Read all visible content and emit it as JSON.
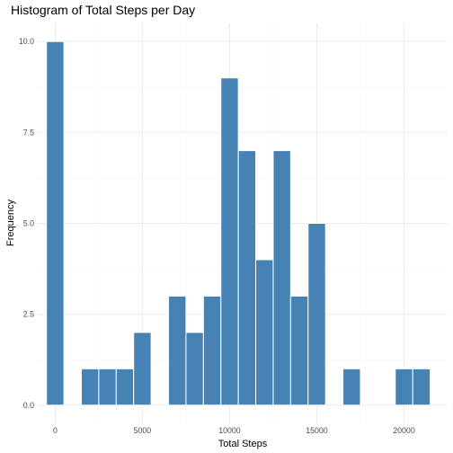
{
  "chart_data": {
    "type": "bar",
    "title": "Histogram of Total Steps per Day",
    "xlabel": "Total Steps",
    "ylabel": "Frequency",
    "xlim": [
      -1000,
      22500
    ],
    "ylim": [
      -0.5,
      10.5
    ],
    "x_ticks": [
      0,
      5000,
      10000,
      15000,
      20000
    ],
    "x_tick_labels": [
      "0",
      "5000",
      "10000",
      "15000",
      "20000"
    ],
    "y_ticks": [
      0,
      2.5,
      5,
      7.5,
      10
    ],
    "y_tick_labels": [
      "0.0",
      "2.5",
      "5.0",
      "7.5",
      "10.0"
    ],
    "bin_width": 1000,
    "bins": [
      {
        "x_center": 0,
        "count": 10
      },
      {
        "x_center": 2000,
        "count": 1
      },
      {
        "x_center": 3000,
        "count": 1
      },
      {
        "x_center": 4000,
        "count": 1
      },
      {
        "x_center": 5000,
        "count": 2
      },
      {
        "x_center": 7000,
        "count": 3
      },
      {
        "x_center": 8000,
        "count": 2
      },
      {
        "x_center": 9000,
        "count": 3
      },
      {
        "x_center": 10000,
        "count": 9
      },
      {
        "x_center": 11000,
        "count": 7
      },
      {
        "x_center": 12000,
        "count": 4
      },
      {
        "x_center": 13000,
        "count": 7
      },
      {
        "x_center": 14000,
        "count": 3
      },
      {
        "x_center": 15000,
        "count": 5
      },
      {
        "x_center": 17000,
        "count": 1
      },
      {
        "x_center": 20000,
        "count": 1
      },
      {
        "x_center": 21000,
        "count": 1
      }
    ],
    "bar_color": "#4682b4",
    "bar_outline_color": "#ffffff",
    "grid": true,
    "legend": "none"
  }
}
